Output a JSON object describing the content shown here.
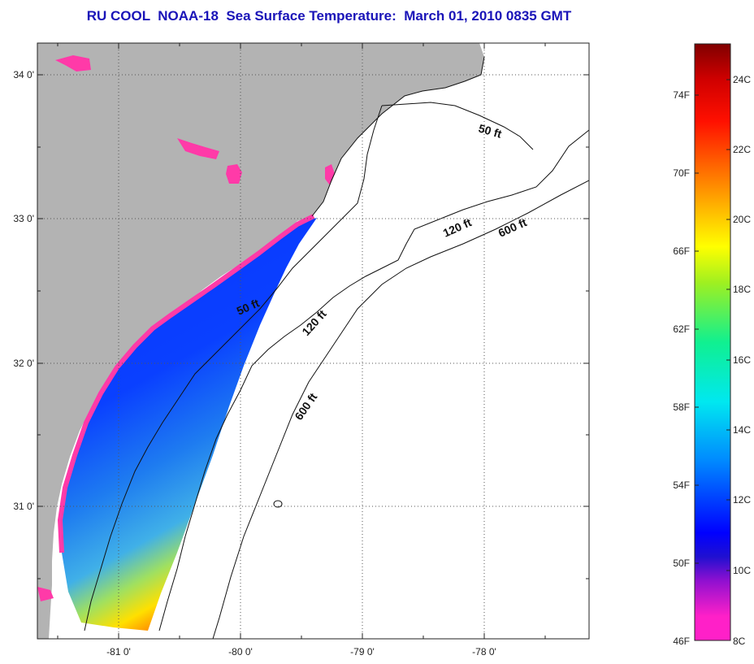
{
  "title": "RU COOL  NOAA-18  Sea Surface Temperature:  March 01, 2010 0835 GMT",
  "map": {
    "lat_ticks": [
      "34 0'",
      "33 0'",
      "32 0'",
      "31 0'"
    ],
    "lon_ticks": [
      "-81 0'",
      "-80 0'",
      "-79 0'",
      "-78 0'"
    ],
    "contour_labels": [
      "50 ft",
      "120 ft",
      "600 ft",
      "50 ft",
      "120 ft",
      "600 ft"
    ],
    "colors": {
      "land": "#b3b3b3",
      "ocean": "#ffffff",
      "coast_flag": "#ff3aa8"
    }
  },
  "colorbar": {
    "fahrenheit_labels": [
      "74F",
      "70F",
      "66F",
      "62F",
      "58F",
      "54F",
      "50F",
      "46F"
    ],
    "celsius_labels": [
      "24C",
      "22C",
      "20C",
      "18C",
      "16C",
      "14C",
      "12C",
      "10C",
      "8C"
    ],
    "range_c": [
      8,
      25
    ]
  }
}
